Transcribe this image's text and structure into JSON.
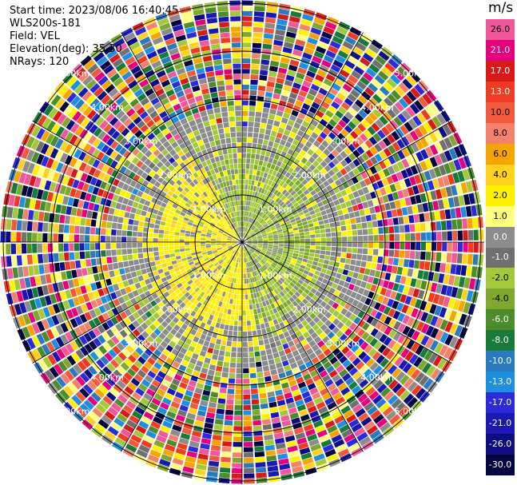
{
  "header": {
    "start_time": "Start time: 2023/08/06 16:40:45",
    "instrument": "WLS200s-181",
    "field": "Field: VEL",
    "elevation": "Elevation(deg): 35.30",
    "nrays": "NRays: 120"
  },
  "colorbar": {
    "unit": "m/s",
    "bins": [
      {
        "label": "26.0",
        "color": "#f0589a"
      },
      {
        "label": "21.0",
        "color": "#e6007e"
      },
      {
        "label": "17.0",
        "color": "#d61a1a"
      },
      {
        "label": "13.0",
        "color": "#ee3b22"
      },
      {
        "label": "10.0",
        "color": "#f05a3a"
      },
      {
        "label": "8.0",
        "color": "#f4816a"
      },
      {
        "label": "6.0",
        "color": "#f6a400"
      },
      {
        "label": "4.0",
        "color": "#ffd21e"
      },
      {
        "label": "2.0",
        "color": "#fff200"
      },
      {
        "label": "1.0",
        "color": "#ffff80"
      },
      {
        "label": "0.0",
        "color": "#8c8c8c"
      },
      {
        "label": "-1.0",
        "color": "#707070"
      },
      {
        "label": "-2.0",
        "color": "#a3c93a"
      },
      {
        "label": "-4.0",
        "color": "#7fa82e"
      },
      {
        "label": "-6.0",
        "color": "#4c8c2b"
      },
      {
        "label": "-8.0",
        "color": "#1a7a3a"
      },
      {
        "label": "-10.0",
        "color": "#2a7abf"
      },
      {
        "label": "-13.0",
        "color": "#1e8fe0"
      },
      {
        "label": "-17.0",
        "color": "#2b2bd8"
      },
      {
        "label": "-21.0",
        "color": "#1a1ab0"
      },
      {
        "label": "-26.0",
        "color": "#0d0d80"
      },
      {
        "label": "-30.0",
        "color": "#050540"
      }
    ]
  },
  "range_rings": {
    "labels": [
      "1.00km",
      "2.00km",
      "3.00km",
      "4.00km",
      "5.00km"
    ]
  }
}
